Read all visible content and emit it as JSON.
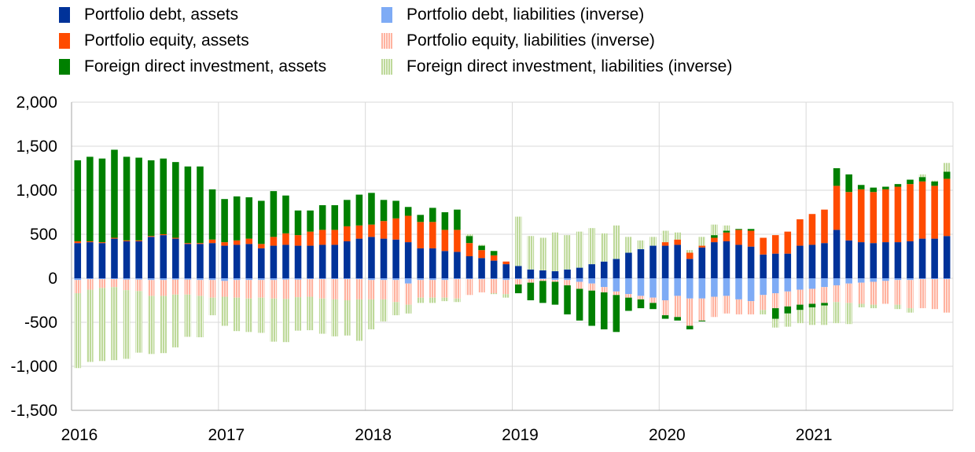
{
  "chart_data": {
    "type": "bar",
    "stacked": true,
    "title": "",
    "xlabel": "",
    "ylabel": "",
    "ylim": [
      -1500,
      2000
    ],
    "yticks": [
      2000,
      1500,
      1000,
      500,
      0,
      -500,
      -1000,
      -1500
    ],
    "ytick_labels": [
      "2,000",
      "1,500",
      "1,000",
      "500",
      "0",
      "-500",
      "-1,000",
      "-1,500"
    ],
    "xtick_labels": [
      "2016",
      "2017",
      "2018",
      "2019",
      "2020",
      "2021"
    ],
    "x": [
      "2016-01",
      "2016-02",
      "2016-03",
      "2016-04",
      "2016-05",
      "2016-06",
      "2016-07",
      "2016-08",
      "2016-09",
      "2016-10",
      "2016-11",
      "2016-12",
      "2017-01",
      "2017-02",
      "2017-03",
      "2017-04",
      "2017-05",
      "2017-06",
      "2017-07",
      "2017-08",
      "2017-09",
      "2017-10",
      "2017-11",
      "2017-12",
      "2018-01",
      "2018-02",
      "2018-03",
      "2018-04",
      "2018-05",
      "2018-06",
      "2018-07",
      "2018-08",
      "2018-09",
      "2018-10",
      "2018-11",
      "2018-12",
      "2019-01",
      "2019-02",
      "2019-03",
      "2019-04",
      "2019-05",
      "2019-06",
      "2019-07",
      "2019-08",
      "2019-09",
      "2019-10",
      "2019-11",
      "2019-12",
      "2020-01",
      "2020-02",
      "2020-03",
      "2020-04",
      "2020-05",
      "2020-06",
      "2020-07",
      "2020-08",
      "2020-09",
      "2020-10",
      "2020-11",
      "2020-12",
      "2021-01",
      "2021-02",
      "2021-03",
      "2021-04",
      "2021-05",
      "2021-06",
      "2021-07",
      "2021-08",
      "2021-09",
      "2021-10",
      "2021-11",
      "2021-12"
    ],
    "grid": "both",
    "legend_position": "top",
    "series": [
      {
        "name": "Portfolio debt, assets",
        "color": "#003299",
        "hatched": false,
        "values": [
          400,
          410,
          400,
          450,
          420,
          420,
          470,
          490,
          450,
          390,
          390,
          400,
          370,
          380,
          390,
          340,
          370,
          380,
          370,
          370,
          380,
          380,
          420,
          450,
          470,
          450,
          440,
          410,
          340,
          340,
          310,
          300,
          250,
          230,
          200,
          160,
          140,
          100,
          90,
          80,
          100,
          120,
          160,
          190,
          220,
          290,
          330,
          370,
          370,
          380,
          220,
          350,
          410,
          420,
          380,
          360,
          270,
          280,
          280,
          370,
          380,
          400,
          550,
          430,
          410,
          400,
          410,
          410,
          420,
          450,
          450,
          480
        ]
      },
      {
        "name": "Portfolio debt, liabilities (inverse)",
        "color": "#7eabf5",
        "hatched": false,
        "values": [
          -20,
          -10,
          -10,
          -10,
          -15,
          -15,
          -20,
          -20,
          -15,
          -15,
          -20,
          -20,
          -30,
          -20,
          -20,
          -20,
          -20,
          -15,
          -15,
          -10,
          -10,
          -10,
          -10,
          -10,
          -20,
          -20,
          -20,
          -60,
          -20,
          -20,
          -20,
          -10,
          -10,
          -10,
          -10,
          -20,
          -10,
          -10,
          -10,
          -20,
          -20,
          -40,
          -60,
          -100,
          -150,
          -180,
          -200,
          -220,
          -250,
          -200,
          -230,
          -230,
          -210,
          -200,
          -240,
          -260,
          -190,
          -170,
          -150,
          -130,
          -120,
          -100,
          -80,
          -60,
          -50,
          -40,
          -30,
          -20,
          -20,
          -10,
          -10,
          -10
        ]
      },
      {
        "name": "Portfolio equity, assets",
        "color": "#ff4b00",
        "hatched": false,
        "values": [
          20,
          10,
          10,
          10,
          10,
          10,
          10,
          10,
          10,
          10,
          10,
          40,
          40,
          50,
          60,
          50,
          100,
          130,
          120,
          160,
          170,
          170,
          170,
          150,
          140,
          200,
          240,
          300,
          300,
          300,
          240,
          250,
          150,
          90,
          60,
          30,
          0,
          0,
          0,
          0,
          0,
          0,
          0,
          0,
          0,
          0,
          0,
          0,
          40,
          60,
          70,
          20,
          50,
          100,
          170,
          180,
          190,
          210,
          250,
          300,
          350,
          380,
          500,
          550,
          600,
          580,
          600,
          630,
          650,
          650,
          600,
          650
        ]
      },
      {
        "name": "Portfolio equity, liabilities (inverse)",
        "color": "#ffb3a0",
        "hatched": true,
        "values": [
          -150,
          -120,
          -100,
          -90,
          -120,
          -130,
          -180,
          -180,
          -170,
          -170,
          -180,
          -200,
          -180,
          -200,
          -210,
          -200,
          -210,
          -220,
          -200,
          -200,
          -220,
          -230,
          -240,
          -230,
          -220,
          -220,
          -250,
          -240,
          -200,
          -200,
          -200,
          -220,
          -180,
          -150,
          -160,
          -160,
          -60,
          -40,
          -20,
          -20,
          -60,
          -80,
          -80,
          -60,
          -40,
          -40,
          -40,
          -60,
          -170,
          -240,
          -310,
          -250,
          -230,
          -200,
          -170,
          -150,
          -170,
          -170,
          -170,
          -170,
          -170,
          -180,
          -190,
          -220,
          -240,
          -260,
          -260,
          -280,
          -320,
          -330,
          -340,
          -380
        ]
      },
      {
        "name": "Foreign direct investment, assets",
        "color": "#008000",
        "hatched": false,
        "values": [
          920,
          960,
          950,
          1000,
          950,
          940,
          860,
          860,
          860,
          870,
          870,
          570,
          490,
          500,
          470,
          490,
          520,
          430,
          280,
          240,
          280,
          280,
          300,
          350,
          360,
          240,
          200,
          100,
          80,
          160,
          200,
          230,
          80,
          50,
          50,
          0,
          -100,
          -200,
          -250,
          -260,
          -330,
          -360,
          -400,
          -420,
          -420,
          -150,
          -100,
          -70,
          -40,
          -40,
          -40,
          -10,
          30,
          20,
          10,
          20,
          0,
          -120,
          -80,
          -60,
          -40,
          -30,
          200,
          200,
          50,
          50,
          30,
          30,
          50,
          50,
          50,
          80
        ]
      },
      {
        "name": "Foreign direct investment, liabilities (inverse)",
        "color": "#bed99a",
        "hatched": true,
        "values": [
          -850,
          -820,
          -830,
          -830,
          -780,
          -700,
          -660,
          -650,
          -600,
          -480,
          -470,
          -200,
          -330,
          -380,
          -380,
          -400,
          -490,
          -490,
          -380,
          -380,
          -400,
          -420,
          -400,
          -470,
          -340,
          -250,
          -150,
          -100,
          -60,
          -60,
          -40,
          -40,
          20,
          10,
          -10,
          -40,
          560,
          380,
          370,
          440,
          390,
          410,
          410,
          320,
          380,
          180,
          100,
          100,
          130,
          80,
          30,
          100,
          120,
          60,
          0,
          0,
          -50,
          -100,
          -150,
          -150,
          -200,
          -220,
          -240,
          -240,
          -40,
          -40,
          0,
          -50,
          -50,
          30,
          10,
          100
        ]
      }
    ]
  }
}
